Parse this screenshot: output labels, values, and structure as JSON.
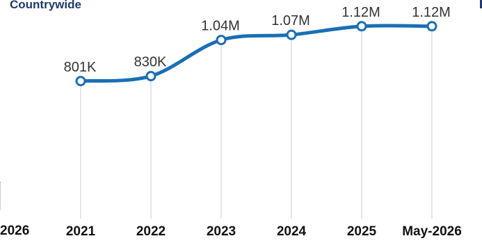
{
  "series_label": "Countrywide",
  "edge_label": "2026",
  "colors": {
    "line": "#1a6fb5",
    "grid": "#d4d4d4",
    "point_fill": "#ffffff",
    "label": "#333333",
    "tick": "#111111",
    "accent": "#1f3a6e"
  },
  "chart_data": {
    "type": "line",
    "categories": [
      "2021",
      "2022",
      "2023",
      "2024",
      "2025",
      "May-2026"
    ],
    "series": [
      {
        "name": "Countrywide",
        "values": [
          801000,
          830000,
          1040000,
          1070000,
          1120000,
          1120000
        ]
      }
    ],
    "data_labels": [
      "801K",
      "830K",
      "1.04M",
      "1.07M",
      "1.12M",
      "1.12M"
    ],
    "ylim": [
      0,
      1200000
    ],
    "title": "",
    "xlabel": "",
    "ylabel": "",
    "grid": "vertical"
  }
}
